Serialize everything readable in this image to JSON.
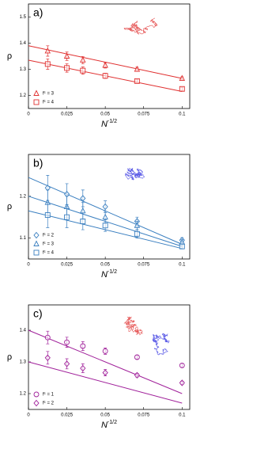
{
  "chart_data": [
    {
      "type": "scatter",
      "label": "a)",
      "ylabel": "ρ",
      "xlabel": "N",
      "xlabel_exponent": "-1/2",
      "xlim": [
        0,
        0.105
      ],
      "xticks": [
        0,
        0.025,
        0.05,
        0.075,
        0.1
      ],
      "ylim": [
        1.15,
        1.55
      ],
      "yticks": [
        1.2,
        1.3,
        1.4,
        1.5
      ],
      "legend": "lower left",
      "series": [
        {
          "name": "fᶜ = 3",
          "color": "#e03030",
          "marker": "triangle",
          "x": [
            0.0125,
            0.025,
            0.0354,
            0.05,
            0.0707,
            0.1
          ],
          "values": [
            1.37,
            1.35,
            1.335,
            1.315,
            1.3,
            1.265
          ],
          "errors": [
            0.02,
            0.016,
            0.014,
            0.01,
            0.008,
            0.006
          ]
        },
        {
          "name": "fᶜ = 4",
          "color": "#e03030",
          "marker": "square",
          "x": [
            0.0125,
            0.025,
            0.0354,
            0.05,
            0.0707,
            0.1
          ],
          "values": [
            1.32,
            1.305,
            1.295,
            1.275,
            1.255,
            1.225
          ],
          "errors": [
            0.02,
            0.016,
            0.014,
            0.01,
            0.006,
            0.006
          ]
        }
      ],
      "fits": [
        {
          "color": "#e03030",
          "x": [
            0,
            0.1
          ],
          "values": [
            1.39,
            1.265
          ]
        },
        {
          "color": "#e03030",
          "x": [
            0,
            0.1
          ],
          "values": [
            1.335,
            1.215
          ]
        }
      ]
    },
    {
      "type": "scatter",
      "label": "b)",
      "ylabel": "ρ",
      "xlabel": "N",
      "xlabel_exponent": "-1/2",
      "xlim": [
        0,
        0.105
      ],
      "xticks": [
        0,
        0.025,
        0.05,
        0.075,
        0.1
      ],
      "ylim": [
        1.05,
        1.3
      ],
      "yticks": [
        1.1,
        1.2
      ],
      "legend": "lower left",
      "series": [
        {
          "name": "fᶜ = 2",
          "color": "#3a7fc0",
          "marker": "diamond",
          "x": [
            0.0125,
            0.025,
            0.0354,
            0.05,
            0.0707,
            0.1
          ],
          "values": [
            1.22,
            1.205,
            1.195,
            1.175,
            1.14,
            1.095
          ],
          "errors": [
            0.03,
            0.025,
            0.02,
            0.014,
            0.01,
            0.006
          ]
        },
        {
          "name": "fᶜ = 3",
          "color": "#3a7fc0",
          "marker": "triangle",
          "x": [
            0.0125,
            0.025,
            0.0354,
            0.05,
            0.0707,
            0.1
          ],
          "values": [
            1.185,
            1.175,
            1.165,
            1.15,
            1.13,
            1.09
          ],
          "errors": [
            0.03,
            0.025,
            0.02,
            0.014,
            0.01,
            0.006
          ]
        },
        {
          "name": "fᶜ = 4",
          "color": "#3a7fc0",
          "marker": "square",
          "x": [
            0.0125,
            0.025,
            0.0354,
            0.05,
            0.0707,
            0.1
          ],
          "values": [
            1.155,
            1.15,
            1.14,
            1.13,
            1.11,
            1.08
          ],
          "errors": [
            0.03,
            0.025,
            0.02,
            0.014,
            0.01,
            0.006
          ]
        }
      ],
      "fits": [
        {
          "color": "#3a7fc0",
          "x": [
            0,
            0.1
          ],
          "values": [
            1.245,
            1.085
          ]
        },
        {
          "color": "#3a7fc0",
          "x": [
            0,
            0.1
          ],
          "values": [
            1.2,
            1.08
          ]
        },
        {
          "color": "#3a7fc0",
          "x": [
            0,
            0.1
          ],
          "values": [
            1.165,
            1.075
          ]
        }
      ]
    },
    {
      "type": "scatter",
      "label": "c)",
      "ylabel": "ρ",
      "xlabel": "N",
      "xlabel_exponent": "-1/2",
      "xlim": [
        0,
        0.105
      ],
      "xticks": [
        0,
        0.025,
        0.05,
        0.075,
        0.1
      ],
      "ylim": [
        1.15,
        1.48
      ],
      "yticks": [
        1.2,
        1.3,
        1.4
      ],
      "legend": "lower left",
      "series": [
        {
          "name": "fᶜ = 1",
          "color": "#a0209a",
          "marker": "circle",
          "x": [
            0.0125,
            0.025,
            0.0354,
            0.05,
            0.0707,
            0.1
          ],
          "values": [
            1.377,
            1.362,
            1.35,
            1.334,
            1.315,
            1.289
          ],
          "errors": [
            0.02,
            0.016,
            0.014,
            0.01,
            0.006,
            0.005
          ]
        },
        {
          "name": "fᶜ = 2",
          "color": "#a0209a",
          "marker": "diamond",
          "x": [
            0.0125,
            0.025,
            0.0354,
            0.05,
            0.0707,
            0.1
          ],
          "values": [
            1.313,
            1.294,
            1.28,
            1.266,
            1.258,
            1.234
          ],
          "errors": [
            0.02,
            0.016,
            0.014,
            0.01,
            0.006,
            0.005
          ]
        }
      ],
      "fits": [
        {
          "color": "#a0209a",
          "x": [
            0,
            0.1
          ],
          "values": [
            1.4,
            1.2
          ]
        },
        {
          "color": "#a0209a",
          "x": [
            0,
            0.1
          ],
          "values": [
            1.3,
            1.17
          ]
        }
      ]
    }
  ]
}
